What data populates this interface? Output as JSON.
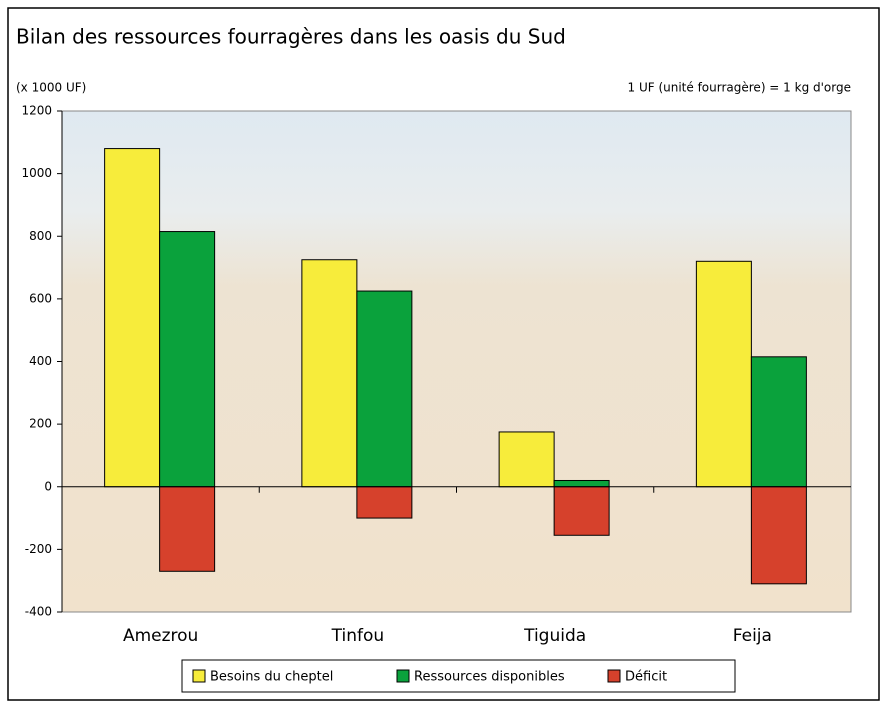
{
  "chart_data": {
    "type": "bar",
    "title": "Bilan des ressources fourragères dans les oasis du Sud",
    "y_unit": "(x 1000 UF)",
    "note": "1 UF (unité fourragère) = 1 kg d'orge",
    "categories": [
      "Amezrou",
      "Tinfou",
      "Tiguida",
      "Feija"
    ],
    "series": [
      {
        "name": "Besoins du cheptel",
        "color": "#f7ec3b",
        "values": [
          1080,
          725,
          175,
          720
        ]
      },
      {
        "name": "Ressources disponibles",
        "color": "#0aa23c",
        "values": [
          815,
          625,
          20,
          415
        ]
      },
      {
        "name": "Déficit",
        "color": "#d6412c",
        "values": [
          -270,
          -100,
          -155,
          -310
        ]
      }
    ],
    "ylim": [
      -400,
      1200
    ],
    "yticks": [
      -400,
      -200,
      0,
      200,
      400,
      600,
      800,
      1000,
      1200
    ]
  }
}
